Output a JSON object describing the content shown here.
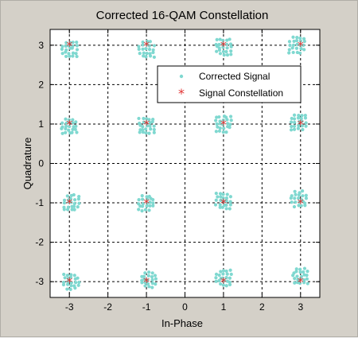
{
  "chart_data": {
    "type": "scatter",
    "title": "Corrected 16-QAM Constellation",
    "xlabel": "In-Phase",
    "ylabel": "Quadrature",
    "xlim": [
      -3.5,
      3.5
    ],
    "ylim": [
      -3.4,
      3.4
    ],
    "xticks": [
      -3,
      -2,
      -1,
      0,
      1,
      2,
      3
    ],
    "yticks": [
      -3,
      -2,
      -1,
      0,
      1,
      2,
      3
    ],
    "grid": true,
    "legend_position": "upper-right",
    "series": [
      {
        "name": "Corrected Signal",
        "marker": "dot",
        "color": "#7fd8d0",
        "clusters": [
          {
            "x": -3.0,
            "y": 2.9
          },
          {
            "x": -1.0,
            "y": 2.9
          },
          {
            "x": 1.0,
            "y": 2.95
          },
          {
            "x": 2.9,
            "y": 3.0
          },
          {
            "x": -3.0,
            "y": 0.95
          },
          {
            "x": -1.0,
            "y": 0.95
          },
          {
            "x": 1.0,
            "y": 1.0
          },
          {
            "x": 2.95,
            "y": 1.05
          },
          {
            "x": -2.95,
            "y": -1.0
          },
          {
            "x": -1.0,
            "y": -1.0
          },
          {
            "x": 1.0,
            "y": -0.95
          },
          {
            "x": 2.95,
            "y": -0.9
          },
          {
            "x": -2.95,
            "y": -3.0
          },
          {
            "x": -0.95,
            "y": -2.95
          },
          {
            "x": 1.0,
            "y": -2.9
          },
          {
            "x": 3.0,
            "y": -2.85
          }
        ]
      },
      {
        "name": "Signal Constellation",
        "marker": "star",
        "color": "#e03030",
        "points": [
          {
            "x": -3,
            "y": 3
          },
          {
            "x": -1,
            "y": 3
          },
          {
            "x": 1,
            "y": 3
          },
          {
            "x": 3,
            "y": 3
          },
          {
            "x": -3,
            "y": 1
          },
          {
            "x": -1,
            "y": 1
          },
          {
            "x": 1,
            "y": 1
          },
          {
            "x": 3,
            "y": 1
          },
          {
            "x": -3,
            "y": -1
          },
          {
            "x": -1,
            "y": -1
          },
          {
            "x": 1,
            "y": -1
          },
          {
            "x": 3,
            "y": -1
          },
          {
            "x": -3,
            "y": -3
          },
          {
            "x": -1,
            "y": -3
          },
          {
            "x": 1,
            "y": -3
          },
          {
            "x": 3,
            "y": -3
          }
        ]
      }
    ]
  }
}
